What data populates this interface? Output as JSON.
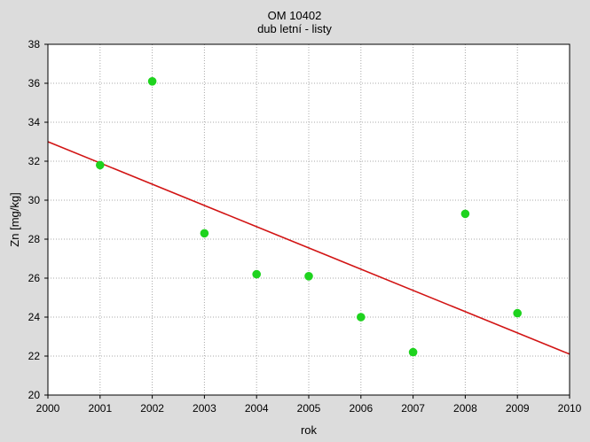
{
  "chart_data": {
    "type": "scatter",
    "title": "OM 10402",
    "subtitle": "dub letní - listy",
    "xlabel": "rok",
    "ylabel": "Zn [mg/kg]",
    "xlim": [
      2000,
      2010
    ],
    "ylim": [
      20,
      38
    ],
    "x_ticks": [
      "2000",
      "2001",
      "2002",
      "2003",
      "2004",
      "2005",
      "2006",
      "2007",
      "2008",
      "2009",
      "2010"
    ],
    "y_ticks": [
      "20",
      "22",
      "24",
      "26",
      "28",
      "30",
      "32",
      "34",
      "36",
      "38"
    ],
    "grid": true,
    "series": [
      {
        "points": [
          {
            "x": 2001,
            "y": 31.8
          },
          {
            "x": 2002,
            "y": 36.1
          },
          {
            "x": 2003,
            "y": 28.3
          },
          {
            "x": 2004,
            "y": 26.2
          },
          {
            "x": 2005,
            "y": 26.1
          },
          {
            "x": 2006,
            "y": 24.0
          },
          {
            "x": 2007,
            "y": 22.2
          },
          {
            "x": 2008,
            "y": 29.3
          },
          {
            "x": 2009,
            "y": 24.2
          }
        ],
        "color": "#1ed31e"
      }
    ],
    "trendline": {
      "from": {
        "x": 2000,
        "y": 33.0
      },
      "to": {
        "x": 2010,
        "y": 22.1
      },
      "color": "#d21414"
    },
    "plot_background": "#ffffff",
    "figure_background": "#dcdcdc"
  }
}
